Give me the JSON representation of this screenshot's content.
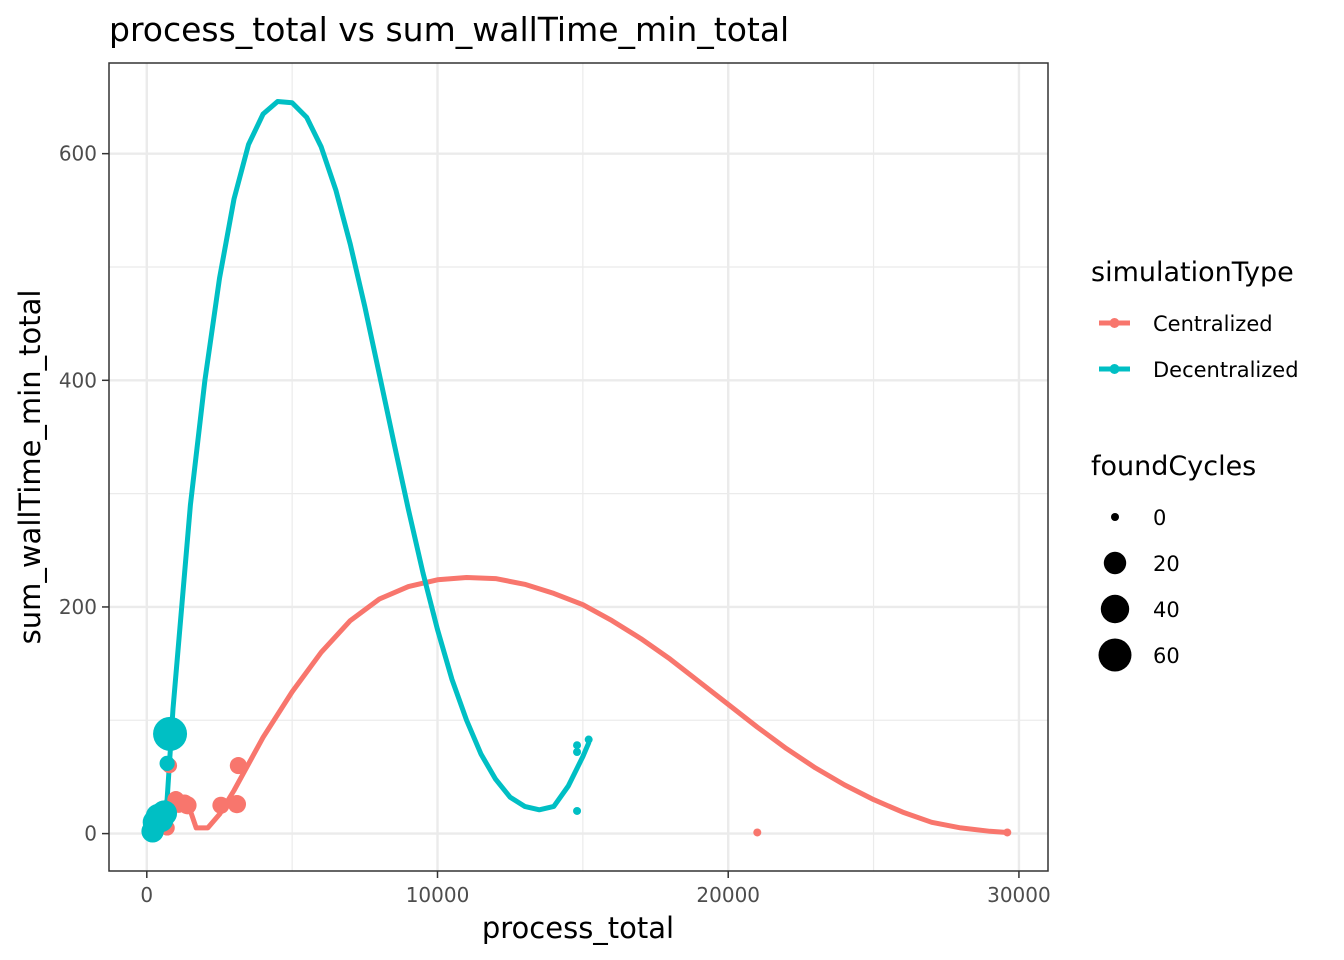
{
  "chart_data": {
    "type": "scatter",
    "title": "process_total  vs  sum_wallTime_min_total",
    "xlabel": "process_total",
    "ylabel": "sum_wallTime_min_total",
    "xlim": [
      -1300,
      31000
    ],
    "ylim": [
      -33,
      680
    ],
    "x_ticks": [
      0,
      10000,
      20000,
      30000
    ],
    "x_tick_labels": [
      "0",
      "10000",
      "20000",
      "30000"
    ],
    "y_ticks": [
      0,
      200,
      400,
      600
    ],
    "y_tick_labels": [
      "0",
      "200",
      "400",
      "600"
    ],
    "grid": true,
    "legend_position": "right",
    "color_legend": {
      "title": "simulationType",
      "entries": [
        {
          "label": "Centralized",
          "color": "#F8766D"
        },
        {
          "label": "Decentralized",
          "color": "#00BFC4"
        }
      ]
    },
    "size_legend": {
      "title": "foundCycles",
      "entries": [
        {
          "label": "0",
          "value": 0
        },
        {
          "label": "20",
          "value": 20
        },
        {
          "label": "40",
          "value": 40
        },
        {
          "label": "60",
          "value": 60
        }
      ]
    },
    "series": [
      {
        "name": "Centralized",
        "color": "#F8766D",
        "points": [
          {
            "x": 300,
            "y": 3,
            "size": 0
          },
          {
            "x": 500,
            "y": 8,
            "size": 2
          },
          {
            "x": 700,
            "y": 5,
            "size": 5
          },
          {
            "x": 780,
            "y": 60,
            "size": 5
          },
          {
            "x": 1000,
            "y": 30,
            "size": 8
          },
          {
            "x": 1100,
            "y": 25,
            "size": 5
          },
          {
            "x": 1300,
            "y": 27,
            "size": 8
          },
          {
            "x": 1400,
            "y": 25,
            "size": 10
          },
          {
            "x": 2550,
            "y": 25,
            "size": 8
          },
          {
            "x": 3100,
            "y": 26,
            "size": 10
          },
          {
            "x": 3150,
            "y": 60,
            "size": 8
          },
          {
            "x": 21000,
            "y": 1,
            "size": 0
          },
          {
            "x": 29600,
            "y": 1,
            "size": 0
          }
        ],
        "trend": [
          [
            300,
            3
          ],
          [
            700,
            8
          ],
          [
            1000,
            35
          ],
          [
            1200,
            28
          ],
          [
            1500,
            20
          ],
          [
            1700,
            5
          ],
          [
            2100,
            5
          ],
          [
            2500,
            17
          ],
          [
            3000,
            38
          ],
          [
            4000,
            85
          ],
          [
            5000,
            125
          ],
          [
            6000,
            160
          ],
          [
            7000,
            188
          ],
          [
            8000,
            207
          ],
          [
            9000,
            218
          ],
          [
            10000,
            224
          ],
          [
            11000,
            226
          ],
          [
            12000,
            225
          ],
          [
            13000,
            220
          ],
          [
            14000,
            212
          ],
          [
            15000,
            202
          ],
          [
            16000,
            188
          ],
          [
            17000,
            172
          ],
          [
            18000,
            154
          ],
          [
            19000,
            134
          ],
          [
            20000,
            114
          ],
          [
            21000,
            94
          ],
          [
            22000,
            75
          ],
          [
            23000,
            58
          ],
          [
            24000,
            43
          ],
          [
            25000,
            30
          ],
          [
            26000,
            19
          ],
          [
            27000,
            10
          ],
          [
            28000,
            5
          ],
          [
            29000,
            2
          ],
          [
            29600,
            1
          ]
        ]
      },
      {
        "name": "Decentralized",
        "color": "#00BFC4",
        "points": [
          {
            "x": 200,
            "y": 2,
            "size": 20
          },
          {
            "x": 300,
            "y": 10,
            "size": 30
          },
          {
            "x": 400,
            "y": 15,
            "size": 30
          },
          {
            "x": 500,
            "y": 12,
            "size": 25
          },
          {
            "x": 600,
            "y": 18,
            "size": 30
          },
          {
            "x": 700,
            "y": 62,
            "size": 5
          },
          {
            "x": 800,
            "y": 88,
            "size": 65
          },
          {
            "x": 14800,
            "y": 78,
            "size": 0
          },
          {
            "x": 14800,
            "y": 72,
            "size": 0
          },
          {
            "x": 14800,
            "y": 20,
            "size": 0
          },
          {
            "x": 15200,
            "y": 83,
            "size": 0
          }
        ],
        "trend": [
          [
            300,
            5
          ],
          [
            500,
            10
          ],
          [
            700,
            30
          ],
          [
            900,
            110
          ],
          [
            1200,
            200
          ],
          [
            1500,
            290
          ],
          [
            2000,
            400
          ],
          [
            2500,
            490
          ],
          [
            3000,
            560
          ],
          [
            3500,
            608
          ],
          [
            4000,
            635
          ],
          [
            4500,
            646
          ],
          [
            5000,
            645
          ],
          [
            5500,
            632
          ],
          [
            6000,
            606
          ],
          [
            6500,
            568
          ],
          [
            7000,
            520
          ],
          [
            7500,
            465
          ],
          [
            8000,
            405
          ],
          [
            8500,
            345
          ],
          [
            9000,
            286
          ],
          [
            9500,
            230
          ],
          [
            10000,
            180
          ],
          [
            10500,
            136
          ],
          [
            11000,
            100
          ],
          [
            11500,
            70
          ],
          [
            12000,
            48
          ],
          [
            12500,
            32
          ],
          [
            13000,
            24
          ],
          [
            13500,
            21
          ],
          [
            14000,
            24
          ],
          [
            14500,
            42
          ],
          [
            15000,
            68
          ],
          [
            15200,
            80
          ]
        ]
      }
    ]
  }
}
